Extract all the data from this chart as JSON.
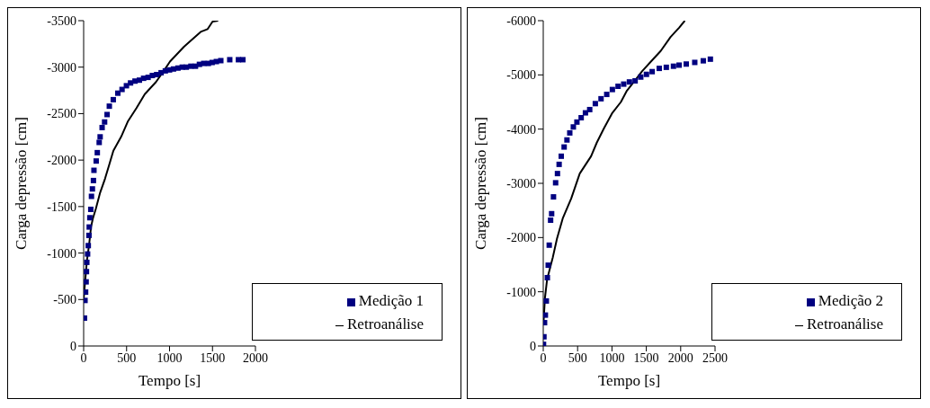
{
  "chart_data": [
    {
      "type": "scatter",
      "xlabel": "Tempo [s]",
      "ylabel": "Carga depressão [cm]",
      "xlim": [
        0,
        2000
      ],
      "ylim": [
        0,
        -3500
      ],
      "xticks": [
        0,
        500,
        1000,
        1500,
        2000
      ],
      "yticks": [
        0,
        -500,
        -1000,
        -1500,
        -2000,
        -2500,
        -3000,
        -3500
      ],
      "grid": false,
      "legend": "bottom right",
      "marker": "square",
      "series": [
        {
          "name": "Medição 1",
          "color": "#000080",
          "x": [
            10,
            16,
            23,
            29,
            33,
            37,
            46,
            54,
            62,
            65,
            72,
            83,
            91,
            102,
            114,
            120,
            146,
            159,
            181,
            192,
            215,
            244,
            273,
            299,
            345,
            398,
            447,
            498,
            546,
            598,
            649,
            698,
            750,
            800,
            850,
            902,
            951,
            1000,
            1046,
            1098,
            1148,
            1195,
            1249,
            1302,
            1348,
            1398,
            1452,
            1496,
            1545,
            1597,
            1701,
            1802,
            1854
          ],
          "values": [
            -300,
            -490,
            -580,
            -690,
            -800,
            -900,
            -990,
            -1080,
            -1190,
            -1280,
            -1380,
            -1470,
            -1610,
            -1690,
            -1780,
            -1890,
            -1990,
            -2080,
            -2190,
            -2250,
            -2350,
            -2410,
            -2490,
            -2580,
            -2650,
            -2720,
            -2760,
            -2800,
            -2830,
            -2850,
            -2860,
            -2880,
            -2890,
            -2910,
            -2920,
            -2940,
            -2960,
            -2970,
            -2980,
            -2990,
            -3000,
            -3000,
            -3010,
            -3010,
            -3030,
            -3040,
            -3040,
            -3050,
            -3060,
            -3070,
            -3080,
            -3080,
            -3080
          ]
        },
        {
          "name": "Retroanálise",
          "type": "line",
          "color": "#000000",
          "marker": "none",
          "x": [
            0,
            13,
            37,
            65,
            86,
            107,
            143,
            192,
            249,
            298,
            346,
            436,
            517,
            615,
            712,
            842,
            940,
            1005,
            1168,
            1265,
            1363,
            1444,
            1501,
            1566
          ],
          "values": [
            -500,
            -650,
            -910,
            -1100,
            -1280,
            -1370,
            -1480,
            -1650,
            -1800,
            -1950,
            -2100,
            -2250,
            -2420,
            -2560,
            -2710,
            -2840,
            -2970,
            -3060,
            -3220,
            -3300,
            -3380,
            -3410,
            -3490,
            -3500
          ]
        }
      ]
    },
    {
      "type": "scatter",
      "xlabel": "Tempo [s]",
      "ylabel": "Carga depressão [cm]",
      "xlim": [
        0,
        2500
      ],
      "ylim": [
        0,
        -6000
      ],
      "xticks": [
        0,
        500,
        1000,
        1500,
        2000,
        2500
      ],
      "yticks": [
        0,
        -1000,
        -2000,
        -3000,
        -4000,
        -5000,
        -6000
      ],
      "grid": false,
      "legend": "bottom right",
      "marker": "square",
      "series": [
        {
          "name": "Medição 2",
          "color": "#000080",
          "x": [
            4,
            10,
            19,
            31,
            45,
            60,
            72,
            87,
            107,
            122,
            149,
            180,
            207,
            231,
            262,
            304,
            345,
            386,
            438,
            490,
            552,
            614,
            676,
            758,
            841,
            924,
            1006,
            1089,
            1171,
            1254,
            1337,
            1419,
            1502,
            1585,
            1688,
            1791,
            1895,
            1977,
            2081,
            2205,
            2329,
            2432
          ],
          "values": [
            -30,
            -170,
            -430,
            -570,
            -830,
            -1260,
            -1490,
            -1860,
            -2320,
            -2440,
            -2750,
            -3010,
            -3180,
            -3350,
            -3500,
            -3670,
            -3800,
            -3930,
            -4040,
            -4130,
            -4210,
            -4300,
            -4360,
            -4470,
            -4560,
            -4640,
            -4730,
            -4790,
            -4830,
            -4870,
            -4890,
            -4960,
            -5010,
            -5060,
            -5120,
            -5140,
            -5160,
            -5180,
            -5200,
            -5230,
            -5260,
            -5290
          ]
        },
        {
          "name": "Retroanálise",
          "type": "line",
          "color": "#000000",
          "marker": "none",
          "x": [
            4,
            25,
            56,
            87,
            138,
            200,
            283,
            407,
            531,
            696,
            779,
            882,
            1006,
            1130,
            1213,
            1337,
            1440,
            1585,
            1709,
            1853,
            1977,
            2060
          ],
          "values": [
            -430,
            -890,
            -1230,
            -1380,
            -1630,
            -1980,
            -2350,
            -2720,
            -3180,
            -3500,
            -3750,
            -4010,
            -4300,
            -4500,
            -4700,
            -4900,
            -5070,
            -5270,
            -5440,
            -5700,
            -5870,
            -6000
          ]
        }
      ]
    }
  ]
}
